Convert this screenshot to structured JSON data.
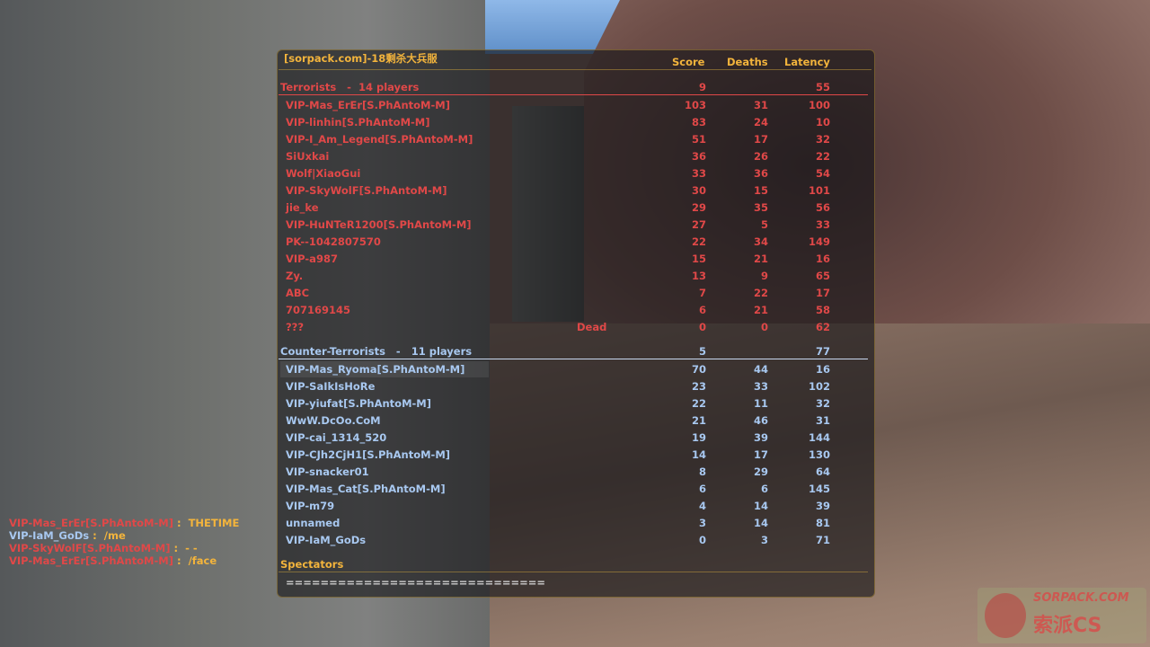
{
  "scoreboard": {
    "server_title": "[sorpack.com]-18剩杀大兵服",
    "columns": {
      "score": "Score",
      "deaths": "Deaths",
      "latency": "Latency"
    },
    "terrorists": {
      "header": "Terrorists   -  14 players",
      "score": "9",
      "latency": "55",
      "players": [
        {
          "name": "VIP-Mas_ErEr[S.PhAntoM-M]",
          "status": "",
          "score": "103",
          "deaths": "31",
          "latency": "100"
        },
        {
          "name": "VIP-linhin[S.PhAntoM-M]",
          "status": "",
          "score": "83",
          "deaths": "24",
          "latency": "10"
        },
        {
          "name": "VIP-I_Am_Legend[S.PhAntoM-M]",
          "status": "",
          "score": "51",
          "deaths": "17",
          "latency": "32"
        },
        {
          "name": "SiUxkai",
          "status": "",
          "score": "36",
          "deaths": "26",
          "latency": "22"
        },
        {
          "name": "Wolf|XiaoGui",
          "status": "",
          "score": "33",
          "deaths": "36",
          "latency": "54"
        },
        {
          "name": "VIP-SkyWolF[S.PhAntoM-M]",
          "status": "",
          "score": "30",
          "deaths": "15",
          "latency": "101"
        },
        {
          "name": "jie_ke",
          "status": "",
          "score": "29",
          "deaths": "35",
          "latency": "56"
        },
        {
          "name": "VIP-HuNTeR1200[S.PhAntoM-M]",
          "status": "",
          "score": "27",
          "deaths": "5",
          "latency": "33"
        },
        {
          "name": "PK--1042807570",
          "status": "",
          "score": "22",
          "deaths": "34",
          "latency": "149"
        },
        {
          "name": "VIP-a987",
          "status": "",
          "score": "15",
          "deaths": "21",
          "latency": "16"
        },
        {
          "name": "Zy.",
          "status": "",
          "score": "13",
          "deaths": "9",
          "latency": "65"
        },
        {
          "name": "ABC",
          "status": "",
          "score": "7",
          "deaths": "22",
          "latency": "17"
        },
        {
          "name": "707169145",
          "status": "",
          "score": "6",
          "deaths": "21",
          "latency": "58"
        },
        {
          "name": "???",
          "status": "Dead",
          "score": "0",
          "deaths": "0",
          "latency": "62"
        }
      ]
    },
    "counter_terrorists": {
      "header": "Counter-Terrorists   -   11 players",
      "score": "5",
      "latency": "77",
      "players": [
        {
          "name": "VIP-Mas_Ryoma[S.PhAntoM-M]",
          "status": "",
          "score": "70",
          "deaths": "44",
          "latency": "16"
        },
        {
          "name": "VIP-SaIkIsHoRe",
          "status": "",
          "score": "23",
          "deaths": "33",
          "latency": "102"
        },
        {
          "name": "VIP-yiufat[S.PhAntoM-M]",
          "status": "",
          "score": "22",
          "deaths": "11",
          "latency": "32"
        },
        {
          "name": "WwW.DcOo.CoM",
          "status": "",
          "score": "21",
          "deaths": "46",
          "latency": "31"
        },
        {
          "name": "VIP-cai_1314_520",
          "status": "",
          "score": "19",
          "deaths": "39",
          "latency": "144"
        },
        {
          "name": "VIP-CJh2CjH1[S.PhAntoM-M]",
          "status": "",
          "score": "14",
          "deaths": "17",
          "latency": "130"
        },
        {
          "name": "VIP-snacker01",
          "status": "",
          "score": "8",
          "deaths": "29",
          "latency": "64"
        },
        {
          "name": "VIP-Mas_Cat[S.PhAntoM-M]",
          "status": "",
          "score": "6",
          "deaths": "6",
          "latency": "145"
        },
        {
          "name": "VIP-m79",
          "status": "",
          "score": "4",
          "deaths": "14",
          "latency": "39"
        },
        {
          "name": "unnamed",
          "status": "",
          "score": "3",
          "deaths": "14",
          "latency": "81"
        },
        {
          "name": "VIP-IaM_GoDs",
          "status": "",
          "score": "0",
          "deaths": "3",
          "latency": "71"
        }
      ]
    },
    "spectators": {
      "header": "Spectators",
      "list": "=============================="
    }
  },
  "chat": [
    {
      "name": "VIP-Mas_ErEr[S.PhAntoM-M]",
      "team": "t",
      "message": " :  THETIME"
    },
    {
      "name": "VIP-IaM_GoDs",
      "team": "ct",
      "message": " :  /me"
    },
    {
      "name": "VIP-SkyWolF[S.PhAntoM-M]",
      "team": "t",
      "message": " :  - -"
    },
    {
      "name": "VIP-Mas_ErEr[S.PhAntoM-M]",
      "team": "t",
      "message": " :  /face"
    }
  ],
  "logo": {
    "line1": "SORPACK.COM",
    "line2": "索派CS"
  },
  "colors": {
    "title": "#f3b43c",
    "terrorist": "#e04848",
    "counter_terrorist": "#a8c8f0"
  }
}
